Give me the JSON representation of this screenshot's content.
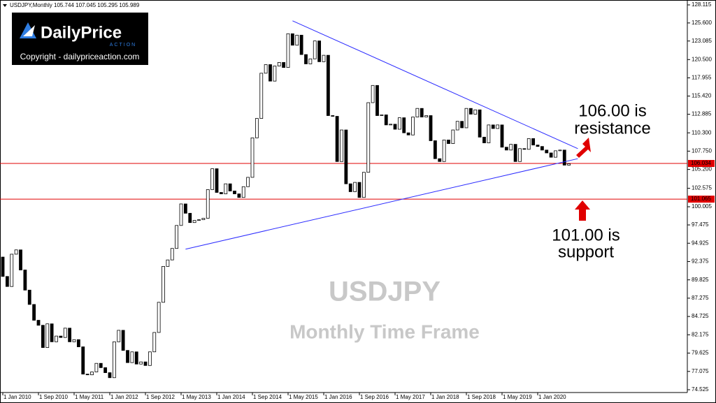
{
  "chart_data": {
    "type": "candlestick",
    "header": "USDJPY,Monthly  105.744 107.045 105.295 105.989",
    "logo": {
      "brand": "DailyPrice",
      "tag": "ACTION",
      "copyright": "Copyright - dailypriceaction.com"
    },
    "watermark": [
      "USDJPY",
      "Monthly Time Frame"
    ],
    "annotations": [
      "106.00 is",
      "resistance",
      "101.00 is",
      "support"
    ],
    "categories": [
      "1 Jan 2010",
      null,
      null,
      null,
      null,
      null,
      null,
      null,
      "1 Sep 2010",
      null,
      null,
      null,
      null,
      null,
      null,
      null,
      "1 May 2011",
      null,
      null,
      null,
      null,
      null,
      null,
      null,
      "1 Jan 2012",
      null,
      null,
      null,
      null,
      null,
      null,
      null,
      "1 Sep 2012",
      null,
      null,
      null,
      null,
      null,
      null,
      null,
      "1 May 2013",
      null,
      null,
      null,
      null,
      null,
      null,
      null,
      "1 Jan 2014",
      null,
      null,
      null,
      null,
      null,
      null,
      null,
      "1 Sep 2014",
      null,
      null,
      null,
      null,
      null,
      null,
      null,
      "1 May 2015",
      null,
      null,
      null,
      null,
      null,
      null,
      null,
      "1 Jan 2016",
      null,
      null,
      null,
      null,
      null,
      null,
      null,
      "1 Sep 2016",
      null,
      null,
      null,
      null,
      null,
      null,
      null,
      "1 May 2017",
      null,
      null,
      null,
      null,
      null,
      null,
      null,
      "1 Jan 2018",
      null,
      null,
      null,
      null,
      null,
      null,
      null,
      "1 Sep 2018",
      null,
      null,
      null,
      null,
      null,
      null,
      null,
      "1 May 2019",
      null,
      null,
      null,
      null,
      null,
      null,
      null,
      "1 Jan 2020",
      null,
      null,
      null,
      null,
      null,
      null,
      null
    ],
    "open": 93.0,
    "close": [
      90.3,
      88.9,
      93.4,
      94.0,
      91.2,
      88.4,
      86.4,
      84.2,
      83.5,
      80.4,
      83.7,
      81.2,
      82.0,
      81.8,
      83.1,
      81.2,
      81.5,
      80.5,
      76.7,
      76.6,
      77.0,
      78.2,
      77.6,
      76.9,
      76.2,
      81.2,
      82.8,
      80.0,
      78.3,
      79.8,
      78.1,
      78.4,
      77.9,
      79.8,
      82.5,
      86.7,
      91.7,
      92.6,
      94.2,
      97.4,
      100.4,
      99.1,
      97.8,
      98.1,
      98.2,
      98.4,
      102.4,
      105.3,
      102.0,
      101.8,
      103.2,
      102.2,
      101.8,
      101.3,
      102.8,
      104.1,
      109.6,
      112.3,
      118.6,
      119.8,
      117.5,
      119.6,
      120.1,
      119.4,
      124.1,
      122.5,
      123.9,
      121.2,
      119.9,
      120.6,
      123.1,
      120.2,
      121.1,
      112.7,
      112.6,
      106.3,
      110.7,
      103.2,
      102.1,
      103.4,
      101.3,
      104.8,
      114.5,
      116.9,
      112.7,
      112.8,
      111.4,
      111.5,
      110.8,
      112.4,
      110.3,
      110.0,
      112.5,
      113.7,
      112.5,
      112.7,
      109.2,
      106.7,
      106.3,
      109.3,
      108.8,
      110.7,
      111.9,
      111.0,
      113.7,
      112.9,
      113.5,
      109.7,
      108.9,
      111.4,
      110.9,
      111.4,
      108.3,
      107.9,
      108.7,
      106.3,
      108.1,
      108.0,
      109.5,
      108.6,
      108.4,
      107.9,
      107.5,
      106.9,
      107.8,
      107.9,
      105.8,
      105.989
    ],
    "ylim": [
      74.525,
      128.115
    ],
    "yticks": [
      {
        "value": 128.115,
        "label": "128.115"
      },
      {
        "value": 125.6,
        "label": "125.600"
      },
      {
        "value": 123.085,
        "label": "123.085"
      },
      {
        "value": 120.5,
        "label": "120.500"
      },
      {
        "value": 117.955,
        "label": "117.955"
      },
      {
        "value": 115.42,
        "label": "115.420"
      },
      {
        "value": 112.885,
        "label": "112.885"
      },
      {
        "value": 110.3,
        "label": "110.300"
      },
      {
        "value": 107.75,
        "label": "107.750"
      },
      {
        "value": 105.2,
        "label": "105.200"
      },
      {
        "value": 102.575,
        "label": "102.575"
      },
      {
        "value": 100.005,
        "label": "100.005"
      },
      {
        "value": 97.475,
        "label": "97.475"
      },
      {
        "value": 94.925,
        "label": "94.925"
      },
      {
        "value": 92.375,
        "label": "92.375"
      },
      {
        "value": 89.825,
        "label": "89.825"
      },
      {
        "value": 87.275,
        "label": "87.275"
      },
      {
        "value": 84.725,
        "label": "84.725"
      },
      {
        "value": 82.175,
        "label": "82.175"
      },
      {
        "value": 79.625,
        "label": "79.625"
      },
      {
        "value": 77.075,
        "label": "77.075"
      },
      {
        "value": 74.525,
        "label": "74.525"
      }
    ],
    "hlines": [
      {
        "value": 106.034,
        "label": "106.034",
        "color": "#e00000"
      },
      {
        "value": 101.065,
        "label": "101.065",
        "color": "#e00000"
      }
    ],
    "trendlines": [
      {
        "x": [
          65,
          129
        ],
        "y": [
          125.9,
          108.1
        ],
        "color": "#2a2aff"
      },
      {
        "x": [
          41,
          129
        ],
        "y": [
          94.1,
          106.7
        ],
        "color": "#2a2aff"
      }
    ]
  }
}
